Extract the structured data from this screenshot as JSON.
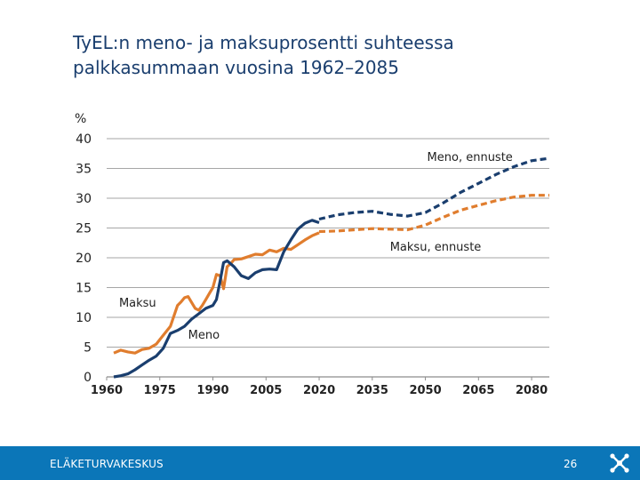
{
  "page": {
    "title_line1": "TyEL:n meno- ja maksuprosentti suhteessa",
    "title_line2": "palkkasummaan vuosina 1962–2085"
  },
  "footer": {
    "organization": "ELÄKETURVAKESKUS",
    "page_number": "26",
    "logo_icon": "eläketurvakeskus-logo-icon"
  },
  "colors": {
    "navy": "#1a3e6e",
    "orange": "#e07d2e",
    "footer_blue": "#0b76b8",
    "grid": "#a6a6a6"
  },
  "chart_data": {
    "type": "line",
    "title": "TyEL:n meno- ja maksuprosentti suhteessa palkkasummaan vuosina 1962–2085",
    "ylabel": "%",
    "xlabel": "",
    "xlim": [
      1960,
      2085
    ],
    "ylim": [
      0,
      40
    ],
    "grid": "horizontal",
    "x_ticks": [
      "1960",
      "1975",
      "1990",
      "2005",
      "2020",
      "2035",
      "2050",
      "2065",
      "2080"
    ],
    "y_ticks": [
      "0",
      "5",
      "10",
      "15",
      "20",
      "25",
      "30",
      "35",
      "40"
    ],
    "series": [
      {
        "name": "Maksu",
        "style": "solid",
        "color": "#e07d2e",
        "x": [
          1962,
          1964,
          1966,
          1968,
          1970,
          1972,
          1974,
          1976,
          1978,
          1980,
          1981,
          1982,
          1983,
          1984,
          1985,
          1986,
          1987,
          1988,
          1989,
          1990,
          1991,
          1992,
          1993,
          1994,
          1995,
          1996,
          1998,
          2000,
          2002,
          2004,
          2006,
          2008,
          2010,
          2012,
          2014,
          2016,
          2018,
          2020
        ],
        "y": [
          4.0,
          4.5,
          4.2,
          4.0,
          4.6,
          4.8,
          5.5,
          7.0,
          8.5,
          12.0,
          12.6,
          13.3,
          13.5,
          12.5,
          11.5,
          11.2,
          12.0,
          13.0,
          14.0,
          15.0,
          17.2,
          17.0,
          14.8,
          18.5,
          19.0,
          19.7,
          19.8,
          20.2,
          20.6,
          20.5,
          21.3,
          21.0,
          21.6,
          21.4,
          22.2,
          23.0,
          23.7,
          24.2
        ]
      },
      {
        "name": "Meno",
        "style": "solid",
        "color": "#1a3e6e",
        "x": [
          1962,
          1964,
          1966,
          1968,
          1970,
          1972,
          1974,
          1976,
          1978,
          1980,
          1982,
          1984,
          1986,
          1988,
          1990,
          1991,
          1992,
          1993,
          1994,
          1996,
          1998,
          2000,
          2002,
          2004,
          2006,
          2008,
          2010,
          2011,
          2012,
          2014,
          2016,
          2018,
          2020
        ],
        "y": [
          0,
          0.2,
          0.5,
          1.2,
          2.0,
          2.8,
          3.5,
          4.8,
          7.3,
          7.8,
          8.5,
          9.7,
          10.6,
          11.5,
          12.0,
          13.0,
          16.0,
          19.2,
          19.5,
          18.5,
          17.0,
          16.5,
          17.5,
          18.0,
          18.1,
          18.0,
          21.0,
          22.0,
          23.0,
          24.8,
          25.8,
          26.3,
          25.9
        ]
      },
      {
        "name": "Maksu, ennuste",
        "style": "dashed",
        "color": "#e07d2e",
        "x": [
          2020,
          2025,
          2030,
          2035,
          2040,
          2045,
          2050,
          2055,
          2060,
          2065,
          2070,
          2075,
          2080,
          2085
        ],
        "y": [
          24.4,
          24.5,
          24.7,
          24.9,
          24.8,
          24.7,
          25.5,
          26.8,
          28.0,
          28.8,
          29.6,
          30.2,
          30.5,
          30.5
        ]
      },
      {
        "name": "Meno, ennuste",
        "style": "dashed",
        "color": "#1a3e6e",
        "x": [
          2020,
          2025,
          2030,
          2035,
          2040,
          2045,
          2050,
          2055,
          2060,
          2065,
          2070,
          2075,
          2080,
          2085
        ],
        "y": [
          26.5,
          27.2,
          27.6,
          27.8,
          27.3,
          27.0,
          27.6,
          29.2,
          31.0,
          32.5,
          34.0,
          35.3,
          36.3,
          36.7
        ]
      }
    ],
    "annotations": [
      {
        "text": "Meno, ennuste",
        "series": "Meno, ennuste"
      },
      {
        "text": "Maksu, ennuste",
        "series": "Maksu, ennuste"
      },
      {
        "text": "Maksu",
        "series": "Maksu"
      },
      {
        "text": "Meno",
        "series": "Meno"
      }
    ]
  }
}
